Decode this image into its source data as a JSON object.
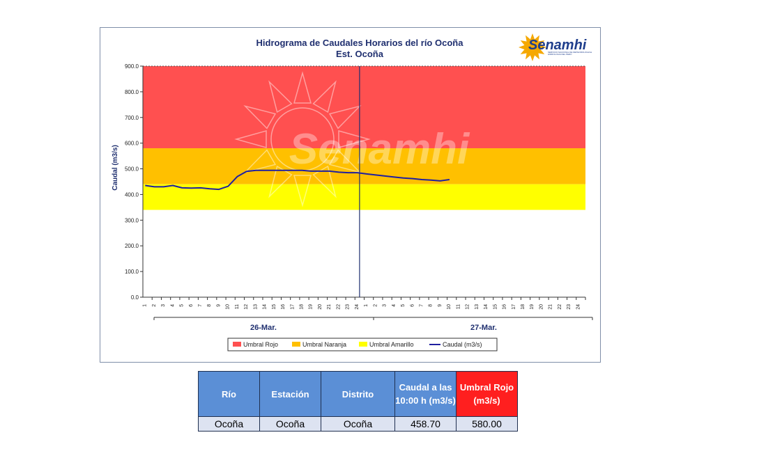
{
  "chart_data": {
    "type": "line",
    "title": "Hidrograma de Caudales Horarios del río Ocoña",
    "subtitle": "Est. Ocoña",
    "ylabel": "Caudal (m3/s)",
    "ylim": [
      0,
      900
    ],
    "yticks": [
      "0.0",
      "100.0",
      "200.0",
      "300.0",
      "400.0",
      "500.0",
      "600.0",
      "700.0",
      "800.0",
      "900.0"
    ],
    "xticks": [
      "1",
      "2",
      "3",
      "4",
      "5",
      "6",
      "7",
      "8",
      "9",
      "10",
      "11",
      "12",
      "13",
      "14",
      "15",
      "16",
      "17",
      "18",
      "19",
      "20",
      "21",
      "22",
      "23",
      "24",
      "1",
      "2",
      "3",
      "4",
      "5",
      "6",
      "7",
      "8",
      "9",
      "10",
      "11",
      "12",
      "13",
      "14",
      "15",
      "16",
      "17",
      "18",
      "19",
      "20",
      "21",
      "22",
      "23",
      "24"
    ],
    "day_labels": [
      "26-Mar.",
      "27-Mar."
    ],
    "bands": [
      {
        "name": "Umbral Rojo",
        "from": 580,
        "to": 900,
        "color": "#ff5050"
      },
      {
        "name": "Umbral Naranja",
        "from": 440,
        "to": 580,
        "color": "#ffc000"
      },
      {
        "name": "Umbral Amarillo",
        "from": 340,
        "to": 440,
        "color": "#ffff00"
      }
    ],
    "series": [
      {
        "name": "Caudal (m3/s)",
        "color": "#1f1fa0",
        "values": [
          435,
          430,
          430,
          435,
          426,
          425,
          426,
          422,
          420,
          432,
          470,
          490,
          494,
          494,
          494,
          494,
          494,
          494,
          491,
          491,
          491,
          487,
          485,
          485,
          480,
          476,
          472,
          468,
          464,
          462,
          458,
          456,
          453,
          458
        ]
      }
    ],
    "grid": false,
    "legend_position": "bottom",
    "watermark": "Senamhi"
  },
  "logo": {
    "name": "Senamhi",
    "subtitle": "SERVICIO NACIONAL DE METEOROLOGIA E HIDROLOGIA DEL PERÚ"
  },
  "table": {
    "headers": [
      "Río",
      "Estación",
      "Distrito",
      "Caudal a las 10:00 h (m3/s)",
      "Umbral Rojo (m3/s)"
    ],
    "row": [
      "Ocoña",
      "Ocoña",
      "Ocoña",
      "458.70",
      "580.00"
    ]
  }
}
